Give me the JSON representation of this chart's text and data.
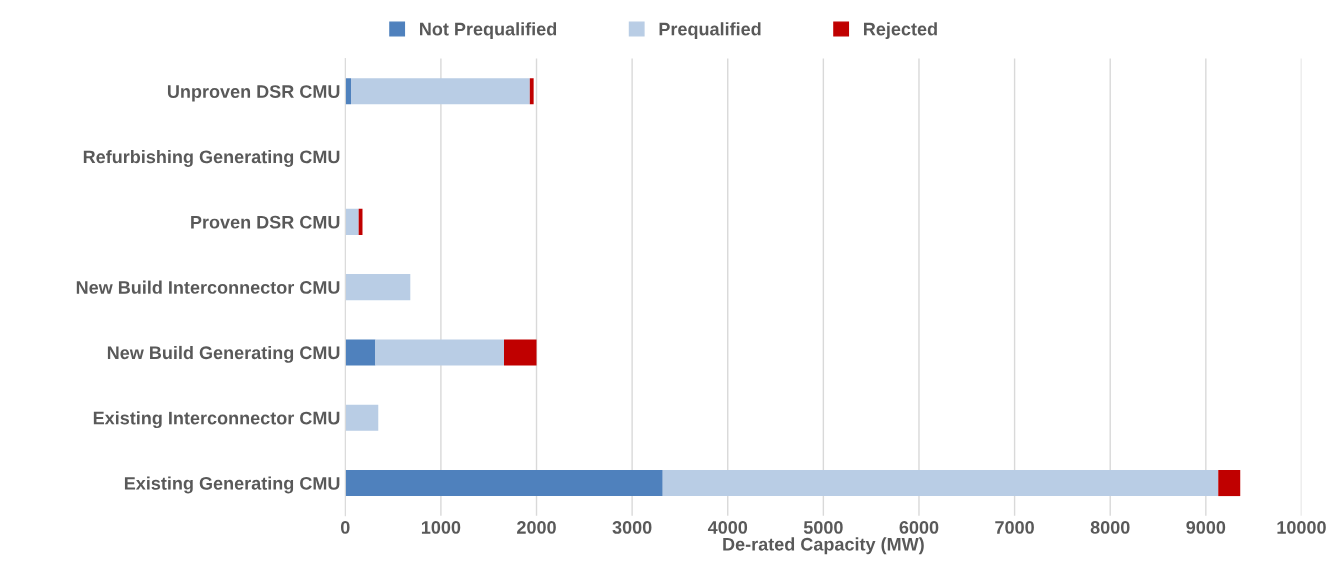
{
  "chart_data": {
    "type": "bar",
    "orientation": "horizontal",
    "stacked": true,
    "xlabel": "De-rated Capacity (MW)",
    "categories": [
      "Unproven DSR CMU",
      "Refurbishing Generating CMU",
      "Proven DSR CMU",
      "New Build Interconnector CMU",
      "New Build Generating CMU",
      "Existing Interconnector CMU",
      "Existing Generating CMU"
    ],
    "series": [
      {
        "name": "Not Prequalified",
        "color": "#4f81bd",
        "values": [
          60,
          0,
          0,
          0,
          315,
          0,
          3320
        ]
      },
      {
        "name": "Prequalified",
        "color": "#b9cde5",
        "values": [
          1870,
          0,
          140,
          680,
          1345,
          345,
          5810
        ]
      },
      {
        "name": "Rejected",
        "color": "#c00000",
        "values": [
          40,
          0,
          40,
          0,
          340,
          0,
          230
        ]
      }
    ],
    "xlim": [
      0,
      10000
    ],
    "xticks": [
      0,
      1000,
      2000,
      3000,
      4000,
      5000,
      6000,
      7000,
      8000,
      9000,
      10000
    ],
    "grid": "x",
    "legend": "top"
  }
}
